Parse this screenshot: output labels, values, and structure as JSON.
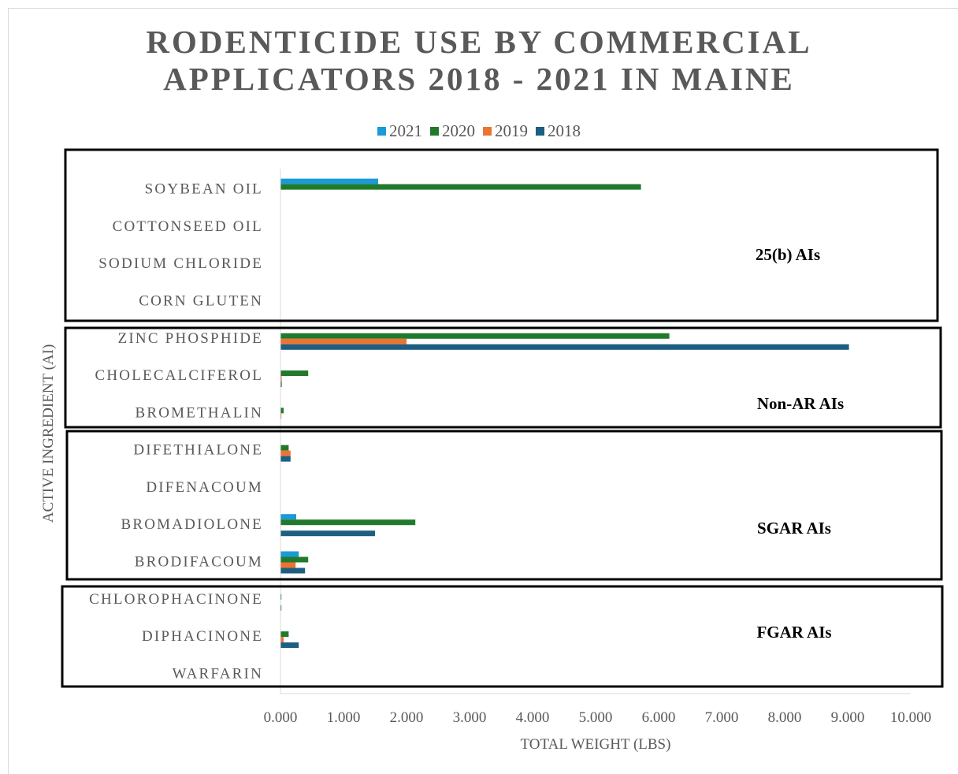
{
  "chart_data": {
    "type": "bar",
    "orientation": "horizontal",
    "title": [
      "RODENTICIDE USE BY COMMERCIAL",
      "APPLICATORS 2018 - 2021 IN MAINE"
    ],
    "xlabel": "TOTAL WEIGHT (LBS)",
    "ylabel": "ACTIVE INGREDIENT (AI)",
    "xlim": [
      0,
      10
    ],
    "xticks": [
      "0.000",
      "1.000",
      "2.000",
      "3.000",
      "4.000",
      "5.000",
      "6.000",
      "7.000",
      "8.000",
      "9.000",
      "10.000"
    ],
    "grid": false,
    "legend_position": "top",
    "categories": [
      "SOYBEAN OIL",
      "COTTONSEED OIL",
      "SODIUM CHLORIDE",
      "CORN GLUTEN",
      "ZINC PHOSPHIDE",
      "CHOLECALCIFEROL",
      "BROMETHALIN",
      "DIFETHIALONE",
      "DIFENACOUM",
      "BROMADIOLONE",
      "BRODIFACOUM",
      "CHLOROPHACINONE",
      "DIPHACINONE",
      "WARFARIN"
    ],
    "series": [
      {
        "name": "2021",
        "color": "#1a9ad6",
        "values": [
          1.55,
          0,
          0,
          0,
          0,
          0,
          0,
          0,
          0,
          0.25,
          0.29,
          0,
          0,
          0
        ]
      },
      {
        "name": "2020",
        "color": "#217a2c",
        "values": [
          5.72,
          0,
          0,
          0,
          6.17,
          0.44,
          0.05,
          0.13,
          0,
          2.14,
          0.44,
          0.01,
          0.13,
          0
        ]
      },
      {
        "name": "2019",
        "color": "#ed7331",
        "values": [
          0,
          0,
          0,
          0,
          2.0,
          0.02,
          0.01,
          0.16,
          0,
          0,
          0.24,
          0,
          0.05,
          0
        ]
      },
      {
        "name": "2018",
        "color": "#1d5e82",
        "values": [
          0,
          0,
          0,
          0,
          9.02,
          0.02,
          0,
          0.16,
          0,
          1.5,
          0.39,
          0.01,
          0.29,
          0
        ]
      }
    ],
    "groups": [
      {
        "label": "25(b) AIs",
        "categories": [
          "SOYBEAN OIL",
          "COTTONSEED OIL",
          "SODIUM CHLORIDE",
          "CORN GLUTEN"
        ]
      },
      {
        "label": "Non-AR AIs",
        "categories": [
          "ZINC PHOSPHIDE",
          "CHOLECALCIFEROL",
          "BROMETHALIN"
        ]
      },
      {
        "label": "SGAR AIs",
        "categories": [
          "DIFETHIALONE",
          "DIFENACOUM",
          "BROMADIOLONE",
          "BRODIFACOUM"
        ]
      },
      {
        "label": "FGAR AIs",
        "categories": [
          "CHLOROPHACINONE",
          "DIPHACINONE",
          "WARFARIN"
        ]
      }
    ]
  }
}
